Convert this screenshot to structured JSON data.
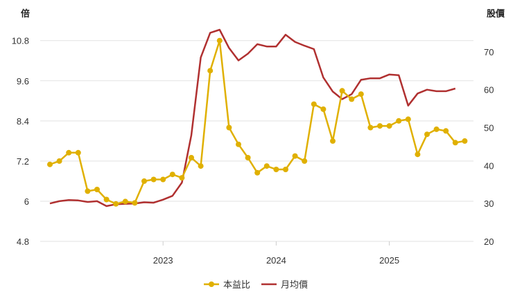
{
  "chart_data": {
    "type": "line",
    "left_axis_title": "倍",
    "right_axis_title": "股價",
    "x_tick_labels": [
      "2023",
      "2024",
      "2025"
    ],
    "y_left_ticks": [
      "4.8",
      "6",
      "7.2",
      "8.4",
      "9.6",
      "10.8"
    ],
    "y_right_ticks": [
      "20",
      "30",
      "40",
      "50",
      "60",
      "70"
    ],
    "y_left_lim": [
      4.8,
      11.6
    ],
    "y_right_lim": [
      20,
      80
    ],
    "grid": "horizontal",
    "legend_position": "bottom-center",
    "x_ticks_at_month_index": [
      12,
      24,
      36
    ],
    "series": [
      {
        "name": "本益比",
        "axis": "left",
        "color": "#e0b000",
        "marker": "circle",
        "values": [
          7.1,
          7.2,
          7.45,
          7.45,
          6.3,
          6.35,
          6.05,
          5.92,
          5.99,
          5.95,
          6.6,
          6.65,
          6.65,
          6.8,
          6.7,
          7.3,
          7.05,
          9.9,
          10.8,
          8.2,
          7.7,
          7.3,
          6.85,
          7.05,
          6.95,
          6.95,
          7.35,
          7.2,
          8.9,
          8.75,
          7.8,
          9.3,
          9.05,
          9.2,
          8.2,
          8.25,
          8.25,
          8.4,
          8.45,
          7.4,
          8.0,
          8.15,
          8.1,
          7.75,
          7.8
        ]
      },
      {
        "name": "月均價",
        "axis": "right",
        "color": "#b03030",
        "marker": "none",
        "values": [
          30.0,
          30.6,
          30.9,
          30.8,
          30.4,
          30.6,
          29.3,
          29.8,
          29.9,
          30.0,
          30.3,
          30.2,
          31.0,
          32.0,
          35.5,
          48.0,
          68.5,
          75.0,
          75.8,
          71.0,
          67.7,
          69.5,
          72.0,
          71.4,
          71.4,
          74.5,
          72.6,
          71.6,
          70.7,
          63.2,
          59.5,
          57.5,
          58.8,
          62.6,
          63.0,
          63.0,
          64.0,
          63.8,
          55.8,
          59.0,
          60.0,
          59.6,
          59.6,
          60.3
        ]
      }
    ]
  }
}
